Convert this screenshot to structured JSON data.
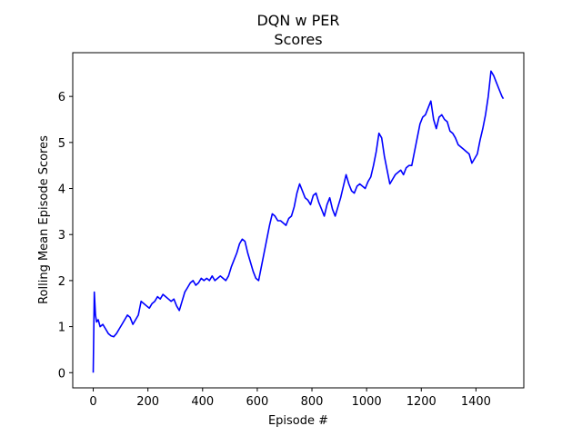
{
  "chart_data": {
    "type": "line",
    "title": "DQN w PER",
    "subtitle": "Scores",
    "xlabel": "Episode #",
    "ylabel": "Rolling Mean Episode Scores",
    "xlim": [
      -75,
      1575
    ],
    "ylim": [
      -0.33,
      6.95
    ],
    "xticks": [
      0,
      200,
      400,
      600,
      800,
      1000,
      1200,
      1400
    ],
    "yticks": [
      0,
      1,
      2,
      3,
      4,
      5,
      6
    ],
    "grid": false,
    "line_color": "#0000ff",
    "series": [
      {
        "x": [
          0,
          4,
          8,
          12,
          18,
          25,
          35,
          45,
          55,
          65,
          75,
          85,
          95,
          105,
          115,
          125,
          135,
          145,
          155,
          165,
          175,
          185,
          195,
          205,
          215,
          225,
          235,
          245,
          255,
          265,
          275,
          285,
          295,
          305,
          315,
          325,
          335,
          345,
          355,
          365,
          375,
          385,
          395,
          405,
          415,
          425,
          435,
          445,
          455,
          465,
          475,
          485,
          495,
          505,
          515,
          525,
          535,
          545,
          555,
          565,
          575,
          585,
          595,
          605,
          615,
          625,
          635,
          645,
          655,
          665,
          675,
          685,
          695,
          705,
          715,
          725,
          735,
          745,
          755,
          765,
          775,
          785,
          795,
          805,
          815,
          825,
          835,
          845,
          855,
          865,
          875,
          885,
          895,
          905,
          915,
          925,
          935,
          945,
          955,
          965,
          975,
          985,
          995,
          1005,
          1015,
          1025,
          1035,
          1045,
          1055,
          1065,
          1075,
          1085,
          1095,
          1105,
          1115,
          1125,
          1135,
          1145,
          1155,
          1165,
          1175,
          1185,
          1195,
          1205,
          1215,
          1225,
          1235,
          1245,
          1255,
          1265,
          1275,
          1285,
          1295,
          1305,
          1315,
          1325,
          1335,
          1345,
          1355,
          1365,
          1375,
          1385,
          1395,
          1405,
          1415,
          1425,
          1435,
          1445,
          1455,
          1465,
          1475,
          1485,
          1495,
          1500
        ],
        "y": [
          0.0,
          1.75,
          1.25,
          1.1,
          1.15,
          1.0,
          1.05,
          0.95,
          0.85,
          0.8,
          0.78,
          0.85,
          0.95,
          1.05,
          1.15,
          1.25,
          1.2,
          1.05,
          1.15,
          1.25,
          1.55,
          1.5,
          1.45,
          1.4,
          1.5,
          1.55,
          1.65,
          1.6,
          1.7,
          1.65,
          1.6,
          1.55,
          1.6,
          1.45,
          1.35,
          1.55,
          1.75,
          1.85,
          1.95,
          2.0,
          1.9,
          1.95,
          2.05,
          2.0,
          2.05,
          2.0,
          2.1,
          2.0,
          2.05,
          2.1,
          2.05,
          2.0,
          2.1,
          2.3,
          2.45,
          2.6,
          2.8,
          2.9,
          2.85,
          2.6,
          2.4,
          2.2,
          2.05,
          2.0,
          2.3,
          2.6,
          2.9,
          3.2,
          3.45,
          3.4,
          3.3,
          3.3,
          3.25,
          3.2,
          3.35,
          3.4,
          3.6,
          3.9,
          4.1,
          3.95,
          3.8,
          3.75,
          3.65,
          3.85,
          3.9,
          3.7,
          3.55,
          3.4,
          3.65,
          3.8,
          3.55,
          3.4,
          3.6,
          3.8,
          4.05,
          4.3,
          4.1,
          3.95,
          3.9,
          4.05,
          4.1,
          4.05,
          4.0,
          4.15,
          4.25,
          4.5,
          4.8,
          5.2,
          5.1,
          4.7,
          4.4,
          4.1,
          4.2,
          4.3,
          4.35,
          4.4,
          4.3,
          4.45,
          4.5,
          4.5,
          4.8,
          5.1,
          5.4,
          5.55,
          5.6,
          5.75,
          5.9,
          5.5,
          5.3,
          5.55,
          5.6,
          5.5,
          5.45,
          5.25,
          5.2,
          5.1,
          4.95,
          4.9,
          4.85,
          4.8,
          4.75,
          4.55,
          4.65,
          4.75,
          5.05,
          5.3,
          5.6,
          6.0,
          6.55,
          6.45,
          6.3,
          6.15,
          6.0,
          5.95
        ]
      }
    ]
  }
}
